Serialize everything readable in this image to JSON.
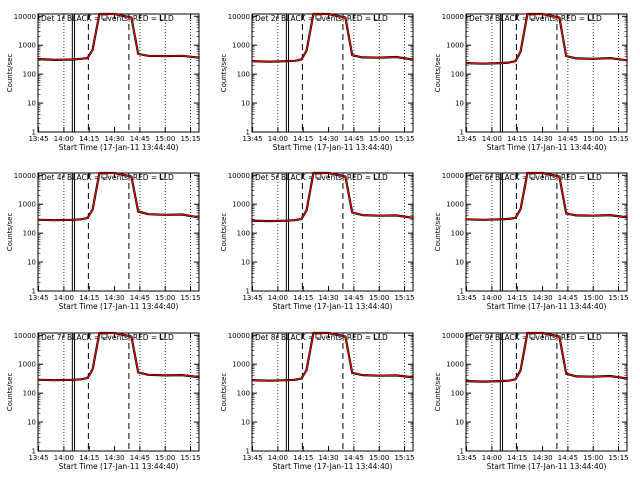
{
  "figure": {
    "panel_title_suffix": "BLACK = Events, RED = LLD",
    "xlabel": "Start Time (17-Jan-11 13:44:40)",
    "ylabel": "Counts/sec",
    "x_tick_labels": [
      "13:45",
      "14:00",
      "14:15",
      "14:30",
      "14:45",
      "15:00",
      "15:15"
    ],
    "y_tick_labels": [
      "1",
      "10",
      "100",
      "1000",
      "10000"
    ]
  },
  "chart_data": [
    {
      "type": "line",
      "title": "Det 1r",
      "xlabel": "Start Time (17-Jan-11 13:44:40)",
      "ylabel": "Counts/sec",
      "yscale": "log",
      "ylim": [
        1,
        12000
      ],
      "xlim": [
        "13:45",
        "15:20"
      ],
      "x": [
        "13:45",
        "13:55",
        "14:05",
        "14:10",
        "14:14",
        "14:17",
        "14:21",
        "14:30",
        "14:40",
        "14:44",
        "14:50",
        "15:00",
        "15:10",
        "15:20"
      ],
      "series": [
        {
          "name": "Events",
          "color": "#000000",
          "values": [
            330,
            310,
            320,
            340,
            360,
            700,
            12000,
            12000,
            9000,
            500,
            430,
            420,
            430,
            370
          ]
        },
        {
          "name": "LLD",
          "color": "#ff0000",
          "values": [
            330,
            310,
            320,
            340,
            360,
            700,
            12000,
            12000,
            9000,
            500,
            430,
            420,
            430,
            370
          ]
        }
      ]
    },
    {
      "type": "line",
      "title": "Det 2r",
      "xlabel": "Start Time (17-Jan-11 13:44:40)",
      "ylabel": "Counts/sec",
      "yscale": "log",
      "ylim": [
        1,
        12000
      ],
      "xlim": [
        "13:45",
        "15:20"
      ],
      "x": [
        "13:45",
        "13:55",
        "14:05",
        "14:10",
        "14:14",
        "14:17",
        "14:21",
        "14:30",
        "14:40",
        "14:44",
        "14:50",
        "15:00",
        "15:10",
        "15:20"
      ],
      "series": [
        {
          "name": "Events",
          "color": "#000000",
          "values": [
            280,
            270,
            280,
            290,
            320,
            650,
            12000,
            12000,
            9000,
            450,
            380,
            370,
            390,
            320
          ]
        },
        {
          "name": "LLD",
          "color": "#ff0000",
          "values": [
            280,
            270,
            280,
            290,
            320,
            650,
            12000,
            12000,
            9000,
            450,
            380,
            370,
            390,
            320
          ]
        }
      ]
    },
    {
      "type": "line",
      "title": "Det 3r",
      "xlabel": "Start Time (17-Jan-11 13:44:40)",
      "ylabel": "Counts/sec",
      "yscale": "log",
      "ylim": [
        1,
        12000
      ],
      "xlim": [
        "13:45",
        "15:20"
      ],
      "x": [
        "13:45",
        "13:55",
        "14:05",
        "14:10",
        "14:14",
        "14:17",
        "14:21",
        "14:30",
        "14:40",
        "14:44",
        "14:50",
        "15:00",
        "15:10",
        "15:20"
      ],
      "series": [
        {
          "name": "Events",
          "color": "#000000",
          "values": [
            240,
            230,
            240,
            250,
            280,
            600,
            12000,
            12000,
            9000,
            420,
            350,
            340,
            360,
            300
          ]
        },
        {
          "name": "LLD",
          "color": "#ff0000",
          "values": [
            240,
            230,
            240,
            250,
            280,
            600,
            12000,
            12000,
            9000,
            420,
            350,
            340,
            360,
            300
          ]
        }
      ]
    },
    {
      "type": "line",
      "title": "Det 4r",
      "xlabel": "Start Time (17-Jan-11 13:44:40)",
      "ylabel": "Counts/sec",
      "yscale": "log",
      "ylim": [
        1,
        12000
      ],
      "xlim": [
        "13:45",
        "15:20"
      ],
      "x": [
        "13:45",
        "13:55",
        "14:05",
        "14:10",
        "14:14",
        "14:17",
        "14:21",
        "14:30",
        "14:40",
        "14:44",
        "14:50",
        "15:00",
        "15:10",
        "15:20"
      ],
      "series": [
        {
          "name": "Events",
          "color": "#000000",
          "values": [
            290,
            280,
            290,
            300,
            330,
            650,
            12000,
            12000,
            9000,
            560,
            450,
            430,
            440,
            350
          ]
        },
        {
          "name": "LLD",
          "color": "#ff0000",
          "values": [
            290,
            280,
            290,
            300,
            330,
            650,
            12000,
            12000,
            9000,
            560,
            450,
            430,
            440,
            350
          ]
        }
      ]
    },
    {
      "type": "line",
      "title": "Det 5r",
      "xlabel": "Start Time (17-Jan-11 13:44:40)",
      "ylabel": "Counts/sec",
      "yscale": "log",
      "ylim": [
        1,
        12000
      ],
      "xlim": [
        "13:45",
        "15:20"
      ],
      "x": [
        "13:45",
        "13:55",
        "14:05",
        "14:10",
        "14:14",
        "14:17",
        "14:21",
        "14:30",
        "14:40",
        "14:44",
        "14:50",
        "15:00",
        "15:10",
        "15:20"
      ],
      "series": [
        {
          "name": "Events",
          "color": "#000000",
          "values": [
            270,
            260,
            270,
            280,
            310,
            620,
            12000,
            12000,
            9000,
            520,
            420,
            400,
            410,
            340
          ]
        },
        {
          "name": "LLD",
          "color": "#ff0000",
          "values": [
            270,
            260,
            270,
            280,
            310,
            620,
            12000,
            12000,
            9000,
            520,
            420,
            400,
            410,
            340
          ]
        }
      ]
    },
    {
      "type": "line",
      "title": "Det 6r",
      "xlabel": "Start Time (17-Jan-11 13:44:40)",
      "ylabel": "Counts/sec",
      "yscale": "log",
      "ylim": [
        1,
        12000
      ],
      "xlim": [
        "13:45",
        "15:20"
      ],
      "x": [
        "13:45",
        "13:55",
        "14:05",
        "14:10",
        "14:14",
        "14:17",
        "14:21",
        "14:30",
        "14:40",
        "14:44",
        "14:50",
        "15:00",
        "15:10",
        "15:20"
      ],
      "series": [
        {
          "name": "Events",
          "color": "#000000",
          "values": [
            300,
            290,
            300,
            310,
            340,
            680,
            12000,
            12000,
            9000,
            480,
            410,
            400,
            420,
            350
          ]
        },
        {
          "name": "LLD",
          "color": "#ff0000",
          "values": [
            300,
            290,
            300,
            310,
            340,
            680,
            12000,
            12000,
            9000,
            480,
            410,
            400,
            420,
            350
          ]
        }
      ]
    },
    {
      "type": "line",
      "title": "Det 7r",
      "xlabel": "Start Time (17-Jan-11 13:44:40)",
      "ylabel": "Counts/sec",
      "yscale": "log",
      "ylim": [
        1,
        12000
      ],
      "xlim": [
        "13:45",
        "15:20"
      ],
      "x": [
        "13:45",
        "13:55",
        "14:05",
        "14:10",
        "14:14",
        "14:17",
        "14:21",
        "14:30",
        "14:40",
        "14:44",
        "14:50",
        "15:00",
        "15:10",
        "15:20"
      ],
      "series": [
        {
          "name": "Events",
          "color": "#000000",
          "values": [
            290,
            280,
            290,
            300,
            330,
            660,
            12000,
            12000,
            9000,
            520,
            430,
            410,
            420,
            360
          ]
        },
        {
          "name": "LLD",
          "color": "#ff0000",
          "values": [
            290,
            280,
            290,
            300,
            330,
            660,
            12000,
            12000,
            9000,
            520,
            430,
            410,
            420,
            360
          ]
        }
      ]
    },
    {
      "type": "line",
      "title": "Det 8r",
      "xlabel": "Start Time (17-Jan-11 13:44:40)",
      "ylabel": "Counts/sec",
      "yscale": "log",
      "ylim": [
        1,
        12000
      ],
      "xlim": [
        "13:45",
        "15:20"
      ],
      "x": [
        "13:45",
        "13:55",
        "14:05",
        "14:10",
        "14:14",
        "14:17",
        "14:21",
        "14:30",
        "14:40",
        "14:44",
        "14:50",
        "15:00",
        "15:10",
        "15:20"
      ],
      "series": [
        {
          "name": "Events",
          "color": "#000000",
          "values": [
            280,
            270,
            280,
            290,
            320,
            640,
            12000,
            12000,
            9000,
            500,
            420,
            400,
            410,
            350
          ]
        },
        {
          "name": "LLD",
          "color": "#ff0000",
          "values": [
            280,
            270,
            280,
            290,
            320,
            640,
            12000,
            12000,
            9000,
            500,
            420,
            400,
            410,
            350
          ]
        }
      ]
    },
    {
      "type": "line",
      "title": "Det 9r",
      "xlabel": "Start Time (17-Jan-11 13:44:40)",
      "ylabel": "Counts/sec",
      "yscale": "log",
      "ylim": [
        1,
        12000
      ],
      "xlim": [
        "13:45",
        "15:20"
      ],
      "x": [
        "13:45",
        "13:55",
        "14:05",
        "14:10",
        "14:14",
        "14:17",
        "14:21",
        "14:30",
        "14:40",
        "14:44",
        "14:50",
        "15:00",
        "15:10",
        "15:20"
      ],
      "series": [
        {
          "name": "Events",
          "color": "#000000",
          "values": [
            260,
            250,
            260,
            270,
            300,
            620,
            12000,
            12000,
            9000,
            470,
            380,
            370,
            390,
            320
          ]
        },
        {
          "name": "LLD",
          "color": "#ff0000",
          "values": [
            260,
            250,
            260,
            270,
            300,
            620,
            12000,
            12000,
            9000,
            470,
            380,
            370,
            390,
            320
          ]
        }
      ]
    }
  ]
}
